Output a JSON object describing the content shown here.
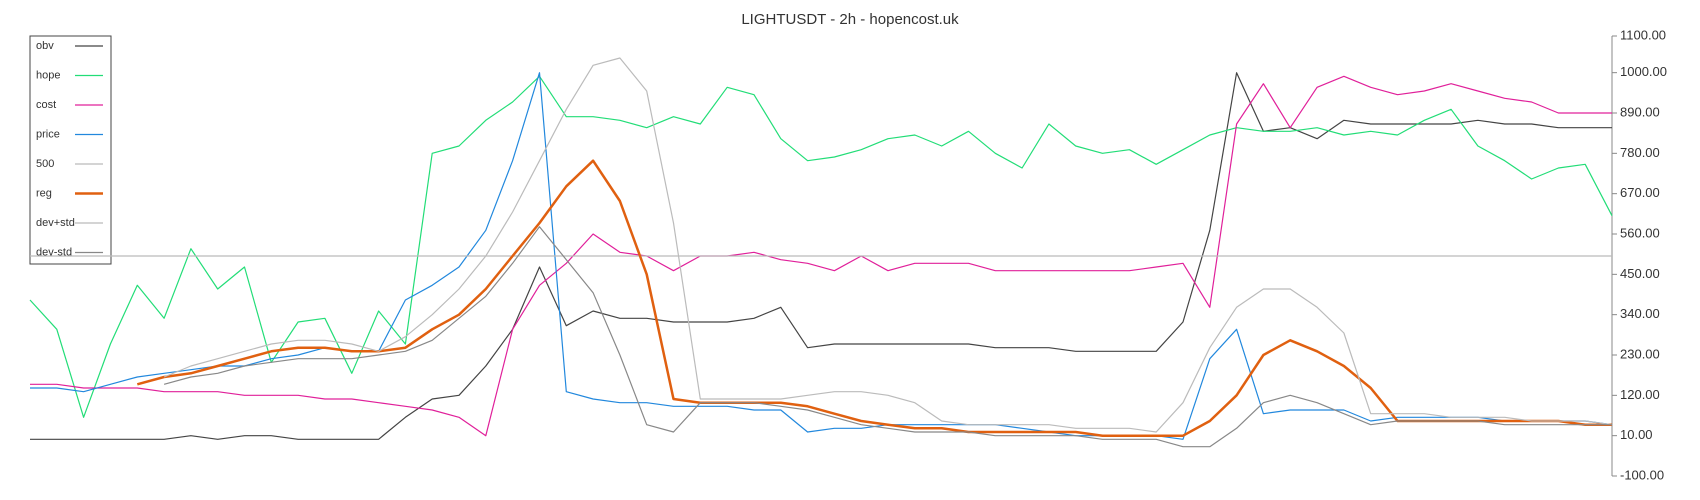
{
  "chart_data": {
    "type": "line",
    "title": "LIGHTUSDT - 2h - hopencost.uk",
    "ylim": [
      -100,
      1100
    ],
    "y_axis_side": "right",
    "yticks": [
      {
        "value": -100,
        "label": "-100.00"
      },
      {
        "value": 10,
        "label": "10.00"
      },
      {
        "value": 120,
        "label": "120.00"
      },
      {
        "value": 230,
        "label": "230.00"
      },
      {
        "value": 340,
        "label": "340.00"
      },
      {
        "value": 450,
        "label": "450.00"
      },
      {
        "value": 560,
        "label": "560.00"
      },
      {
        "value": 670,
        "label": "670.00"
      },
      {
        "value": 780,
        "label": "780.00"
      },
      {
        "value": 890,
        "label": "890.00"
      },
      {
        "value": 1000,
        "label": "1000.00"
      },
      {
        "value": 1100,
        "label": "1100.00"
      }
    ],
    "legend": "upper left",
    "series": [
      {
        "name": "obv",
        "color": "#444444",
        "width": 1.2,
        "values": [
          0,
          0,
          0,
          0,
          0,
          0,
          10,
          0,
          10,
          10,
          0,
          0,
          0,
          0,
          60,
          110,
          120,
          200,
          300,
          470,
          310,
          350,
          330,
          330,
          320,
          320,
          320,
          330,
          360,
          250,
          260,
          260,
          260,
          260,
          260,
          260,
          250,
          250,
          250,
          240,
          240,
          240,
          240,
          320,
          570,
          1000,
          840,
          850,
          820,
          870,
          860,
          860,
          860,
          860,
          870,
          860,
          860,
          850,
          850,
          850
        ]
      },
      {
        "name": "hope",
        "color": "#22dd77",
        "width": 1.2,
        "values": [
          380,
          300,
          60,
          260,
          420,
          330,
          520,
          410,
          470,
          210,
          320,
          330,
          180,
          350,
          260,
          780,
          800,
          870,
          920,
          990,
          880,
          880,
          870,
          850,
          880,
          860,
          960,
          940,
          820,
          760,
          770,
          790,
          820,
          830,
          800,
          840,
          780,
          740,
          860,
          800,
          780,
          790,
          750,
          790,
          830,
          850,
          840,
          840,
          850,
          830,
          840,
          830,
          870,
          900,
          800,
          760,
          710,
          740,
          750,
          610
        ]
      },
      {
        "name": "cost",
        "color": "#e0209a",
        "width": 1.2,
        "values": [
          150,
          150,
          140,
          140,
          140,
          130,
          130,
          130,
          120,
          120,
          120,
          110,
          110,
          100,
          90,
          80,
          60,
          10,
          300,
          420,
          480,
          560,
          510,
          500,
          460,
          500,
          500,
          510,
          490,
          480,
          460,
          500,
          460,
          480,
          480,
          480,
          460,
          460,
          460,
          460,
          460,
          460,
          470,
          480,
          360,
          860,
          970,
          850,
          960,
          990,
          960,
          940,
          950,
          970,
          950,
          930,
          920,
          890,
          890,
          890
        ]
      },
      {
        "name": "price",
        "color": "#2288dd",
        "width": 1.2,
        "values": [
          140,
          140,
          130,
          150,
          170,
          180,
          190,
          200,
          200,
          220,
          230,
          250,
          240,
          240,
          380,
          420,
          470,
          570,
          760,
          1000,
          130,
          110,
          100,
          100,
          90,
          90,
          90,
          80,
          80,
          20,
          30,
          30,
          40,
          40,
          40,
          40,
          40,
          30,
          20,
          10,
          10,
          10,
          10,
          0,
          220,
          300,
          70,
          80,
          80,
          80,
          50,
          60,
          60,
          60,
          60,
          50,
          50,
          50,
          50,
          40
        ]
      },
      {
        "name": "500",
        "color": "#bbbbbb",
        "width": 1.2,
        "values": [
          500,
          500,
          500,
          500,
          500,
          500,
          500,
          500,
          500,
          500,
          500,
          500,
          500,
          500,
          500,
          500,
          500,
          500,
          500,
          500,
          500,
          500,
          500,
          500,
          500,
          500,
          500,
          500,
          500,
          500,
          500,
          500,
          500,
          500,
          500,
          500,
          500,
          500,
          500,
          500,
          500,
          500,
          500,
          500,
          500,
          500,
          500,
          500,
          500,
          500,
          500,
          500,
          500,
          500,
          500,
          500,
          500,
          500,
          500,
          500
        ]
      },
      {
        "name": "reg",
        "color": "#e06010",
        "width": 2.5,
        "values": [
          null,
          null,
          null,
          null,
          150,
          170,
          180,
          200,
          220,
          240,
          250,
          250,
          240,
          240,
          250,
          300,
          340,
          410,
          500,
          590,
          690,
          760,
          650,
          450,
          110,
          100,
          100,
          100,
          100,
          90,
          70,
          50,
          40,
          30,
          30,
          20,
          20,
          20,
          20,
          20,
          10,
          10,
          10,
          10,
          50,
          120,
          230,
          270,
          240,
          200,
          140,
          50,
          50,
          50,
          50,
          50,
          50,
          50,
          40,
          40
        ]
      },
      {
        "name": "dev+std",
        "color": "#bbbbbb",
        "width": 1.2,
        "values": [
          null,
          null,
          null,
          null,
          null,
          170,
          200,
          220,
          240,
          260,
          270,
          270,
          260,
          240,
          280,
          340,
          410,
          500,
          620,
          760,
          900,
          1020,
          1040,
          950,
          590,
          110,
          110,
          110,
          110,
          120,
          130,
          130,
          120,
          100,
          50,
          40,
          40,
          40,
          40,
          30,
          30,
          30,
          20,
          100,
          250,
          360,
          410,
          410,
          360,
          290,
          70,
          70,
          70,
          60,
          60,
          60,
          50,
          50,
          50,
          40
        ]
      },
      {
        "name": "dev-std",
        "color": "#888888",
        "width": 1.2,
        "values": [
          null,
          null,
          null,
          null,
          null,
          150,
          170,
          180,
          200,
          210,
          220,
          220,
          220,
          230,
          240,
          270,
          330,
          390,
          480,
          580,
          490,
          400,
          230,
          40,
          20,
          100,
          100,
          100,
          90,
          80,
          60,
          40,
          30,
          20,
          20,
          20,
          10,
          10,
          10,
          10,
          0,
          0,
          0,
          -20,
          -20,
          30,
          100,
          120,
          100,
          70,
          40,
          50,
          50,
          50,
          50,
          40,
          40,
          40,
          40,
          40
        ]
      }
    ]
  }
}
